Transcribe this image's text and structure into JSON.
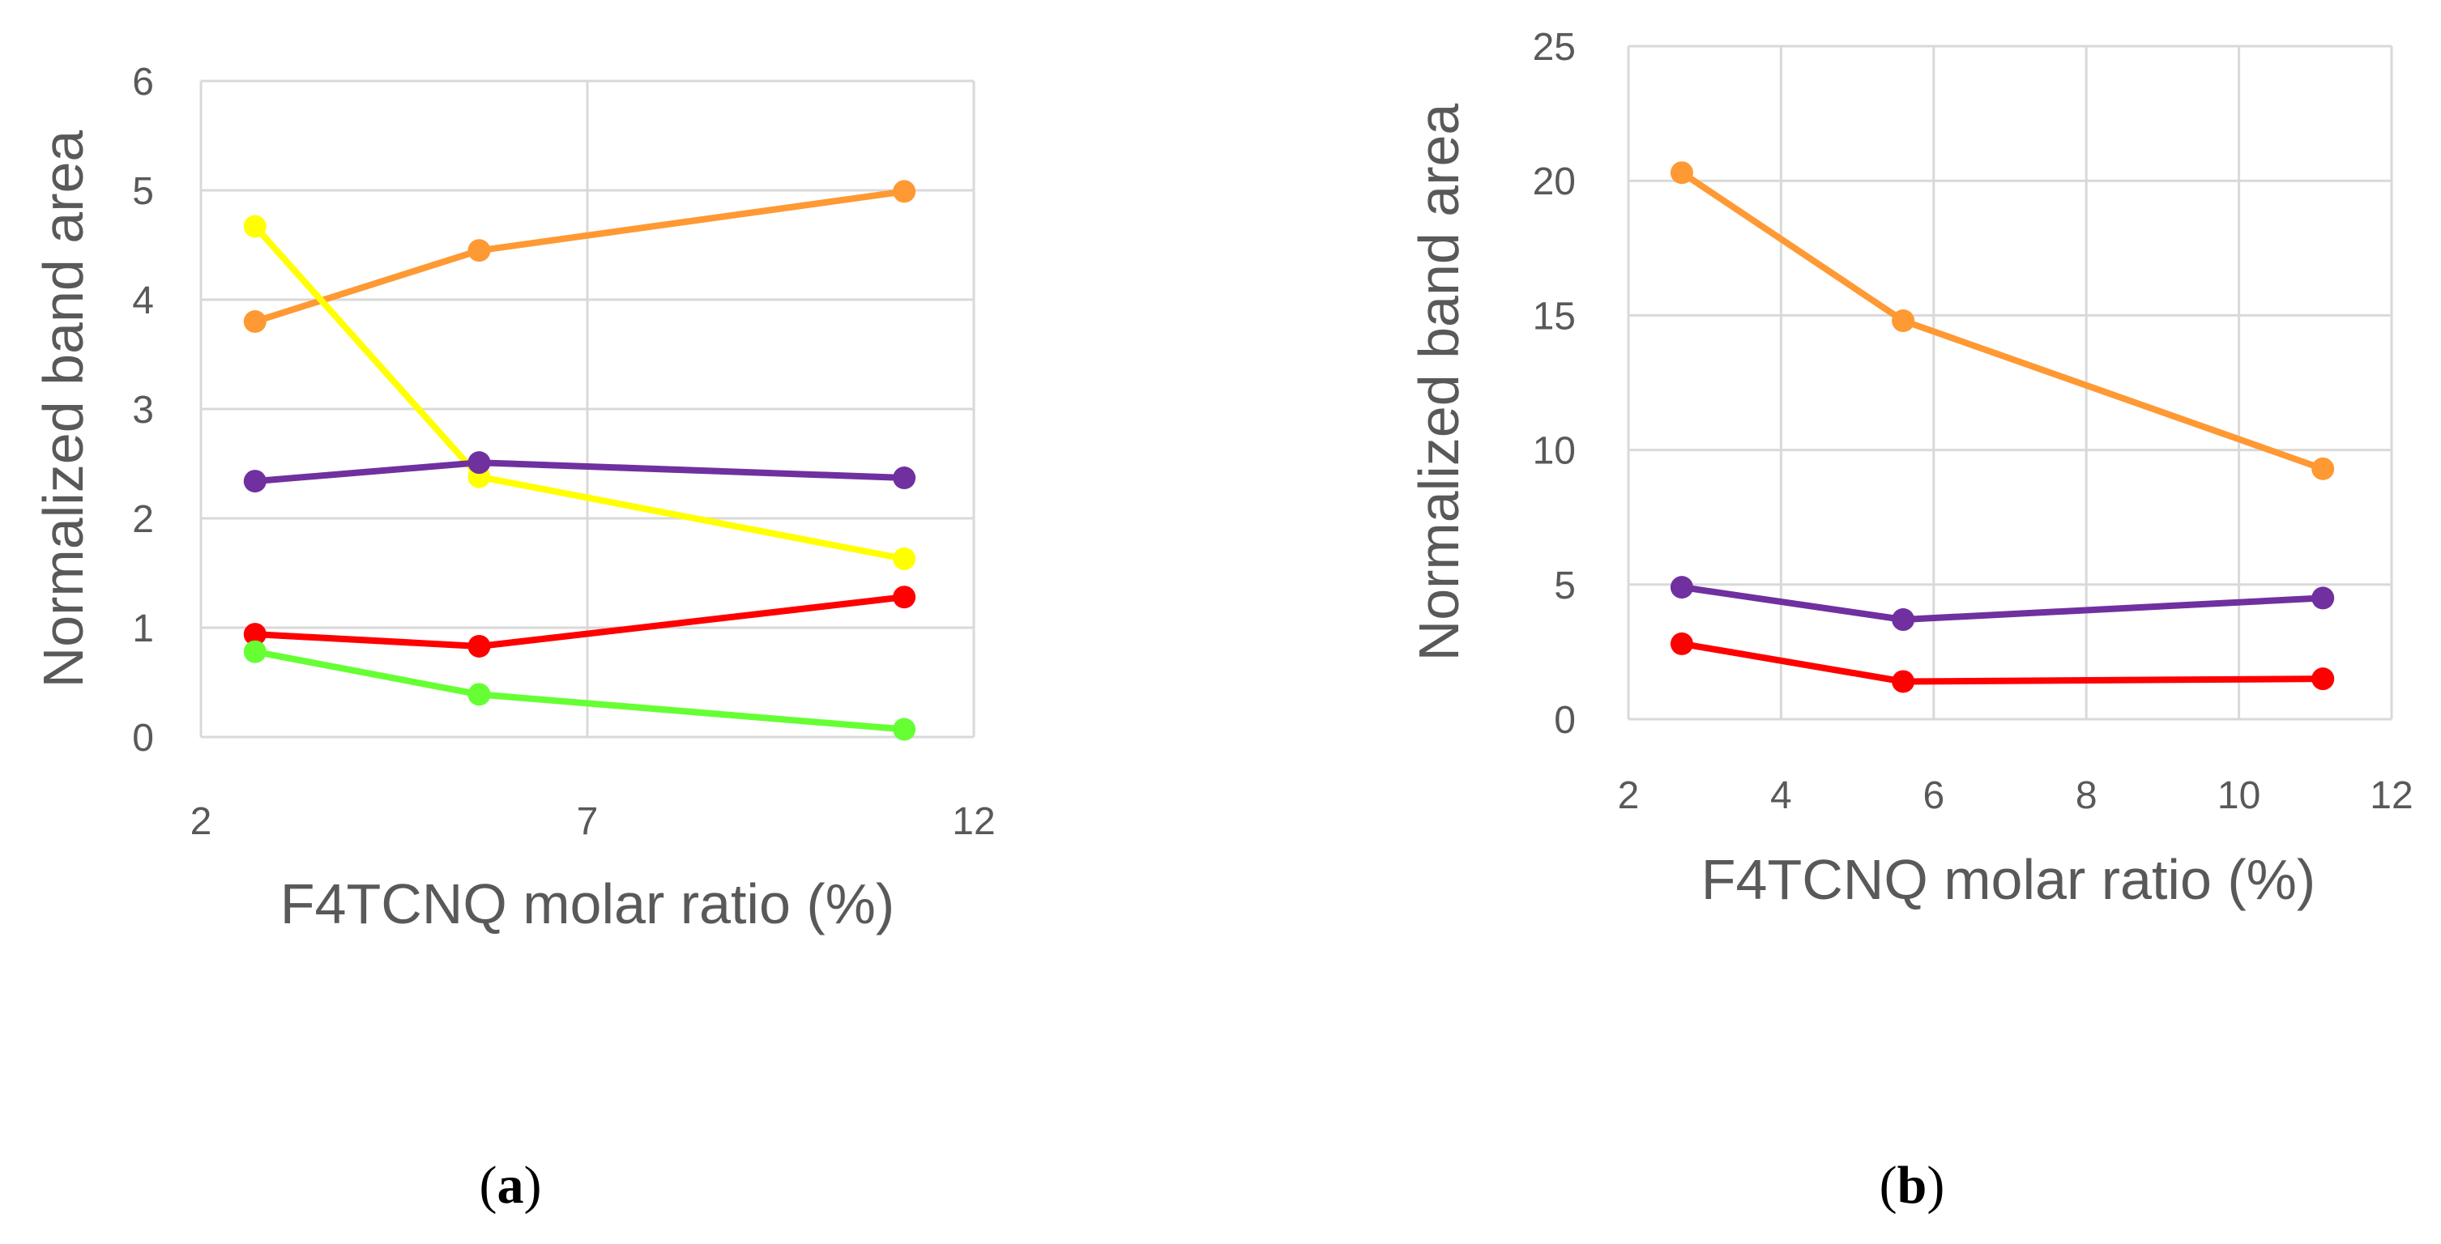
{
  "chart_data": [
    {
      "panel": "a",
      "type": "line",
      "panel_label": {
        "open": "(",
        "letter": "a",
        "close": ")"
      },
      "xlabel": "F4TCNQ molar ratio (%)",
      "ylabel": "Normalized band area",
      "xlim": [
        2,
        12
      ],
      "ylim": [
        0,
        6
      ],
      "xticks": [
        2,
        7,
        12
      ],
      "yticks": [
        0,
        1,
        2,
        3,
        4,
        5,
        6
      ],
      "x": [
        2.7,
        5.6,
        11.1
      ],
      "series": [
        {
          "name": "orange",
          "color": "#FF9933",
          "values": [
            3.8,
            4.45,
            4.99
          ]
        },
        {
          "name": "yellow",
          "color": "#FFFF00",
          "values": [
            4.67,
            2.38,
            1.63
          ]
        },
        {
          "name": "purple",
          "color": "#7030A0",
          "values": [
            2.34,
            2.51,
            2.37
          ]
        },
        {
          "name": "red",
          "color": "#FF0000",
          "values": [
            0.94,
            0.83,
            1.28
          ]
        },
        {
          "name": "green",
          "color": "#66FF33",
          "values": [
            0.78,
            0.39,
            0.07
          ]
        }
      ]
    },
    {
      "panel": "b",
      "type": "line",
      "panel_label": {
        "open": "(",
        "letter": "b",
        "close": ")"
      },
      "xlabel": "F4TCNQ molar ratio (%)",
      "ylabel": "Normalized band area",
      "xlim": [
        2,
        12
      ],
      "ylim": [
        0,
        25
      ],
      "xticks": [
        2,
        4,
        6,
        8,
        10,
        12
      ],
      "yticks": [
        0,
        5,
        10,
        15,
        20,
        25
      ],
      "x": [
        2.7,
        5.6,
        11.1
      ],
      "series": [
        {
          "name": "orange",
          "color": "#FF9933",
          "values": [
            20.3,
            14.8,
            9.3
          ]
        },
        {
          "name": "purple",
          "color": "#7030A0",
          "values": [
            4.9,
            3.7,
            4.5
          ]
        },
        {
          "name": "red",
          "color": "#FF0000",
          "values": [
            2.8,
            1.4,
            1.5
          ]
        }
      ]
    }
  ]
}
